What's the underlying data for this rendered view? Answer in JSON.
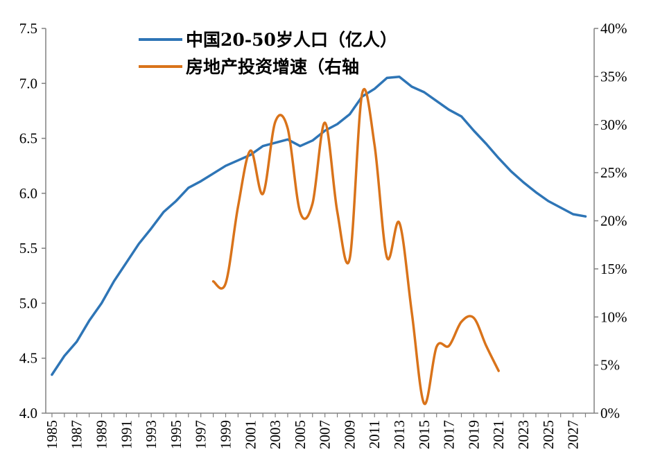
{
  "chart_data": {
    "type": "line",
    "colors": {
      "population": "#2E75B6",
      "investment": "#D9731A"
    },
    "y_left": {
      "ylim": [
        4.0,
        7.5
      ],
      "ticks": [
        "4.0",
        "4.5",
        "5.0",
        "5.5",
        "6.0",
        "6.5",
        "7.0",
        "7.5"
      ]
    },
    "y_right": {
      "ylim": [
        0,
        40
      ],
      "ticks": [
        "0%",
        "5%",
        "10%",
        "15%",
        "20%",
        "25%",
        "30%",
        "35%",
        "40%"
      ]
    },
    "x_ticks": [
      "1985",
      "1987",
      "1989",
      "1991",
      "1993",
      "1995",
      "1997",
      "1999",
      "2001",
      "2003",
      "2005",
      "2007",
      "2009",
      "2011",
      "2013",
      "2015",
      "2017",
      "2019",
      "2021",
      "2023",
      "2025",
      "2027"
    ],
    "series": [
      {
        "name": "中国20-50岁人口（亿人）",
        "axis": "left",
        "x": [
          1985,
          1986,
          1987,
          1988,
          1989,
          1990,
          1991,
          1992,
          1993,
          1994,
          1995,
          1996,
          1997,
          1998,
          1999,
          2000,
          2001,
          2002,
          2003,
          2004,
          2005,
          2006,
          2007,
          2008,
          2009,
          2010,
          2011,
          2012,
          2013,
          2014,
          2015,
          2016,
          2017,
          2018,
          2019,
          2020,
          2021,
          2022,
          2023,
          2024,
          2025,
          2026,
          2027,
          2028
        ],
        "values": [
          4.35,
          4.52,
          4.65,
          4.84,
          5.0,
          5.2,
          5.37,
          5.54,
          5.68,
          5.83,
          5.93,
          6.05,
          6.11,
          6.18,
          6.25,
          6.3,
          6.35,
          6.43,
          6.46,
          6.49,
          6.43,
          6.48,
          6.57,
          6.63,
          6.72,
          6.88,
          6.95,
          7.05,
          7.06,
          6.97,
          6.92,
          6.84,
          6.76,
          6.7,
          6.57,
          6.45,
          6.32,
          6.2,
          6.1,
          6.01,
          5.93,
          5.87,
          5.81,
          5.79
        ]
      },
      {
        "name": "房地产投资增速（右轴",
        "axis": "right",
        "x": [
          1998,
          1999,
          2000,
          2001,
          2002,
          2003,
          2004,
          2005,
          2006,
          2007,
          2008,
          2009,
          2010,
          2011,
          2012,
          2013,
          2014,
          2015,
          2016,
          2017,
          2018,
          2019,
          2020,
          2021
        ],
        "values": [
          13.7,
          13.5,
          21.5,
          27.3,
          22.8,
          30.3,
          29.6,
          20.9,
          21.8,
          30.2,
          20.9,
          16.1,
          33.2,
          27.9,
          16.2,
          19.8,
          10.5,
          1.0,
          6.9,
          7.0,
          9.5,
          9.9,
          7.0,
          4.4
        ]
      }
    ]
  }
}
